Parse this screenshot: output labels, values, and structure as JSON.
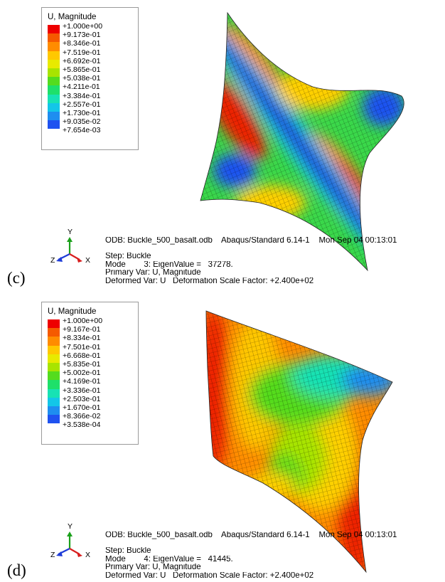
{
  "panels": [
    {
      "id": "c",
      "label": "(c)",
      "legend": {
        "title": "U, Magnitude",
        "values": [
          "+1.000e+00",
          "+9.173e-01",
          "+8.346e-01",
          "+7.519e-01",
          "+6.692e-01",
          "+5.865e-01",
          "+5.038e-01",
          "+4.211e-01",
          "+3.384e-01",
          "+2.557e-01",
          "+1.730e-01",
          "+9.035e-02",
          "+7.654e-03"
        ],
        "colors": [
          "#ee0000",
          "#f55a00",
          "#ff8c00",
          "#ffc800",
          "#e8ea00",
          "#a8e400",
          "#54dc1e",
          "#1ee06a",
          "#17e2b4",
          "#13c6e8",
          "#1e8ef0",
          "#1f52f0",
          "#2020d8"
        ]
      },
      "axes": {
        "y": "Y",
        "z": "Z",
        "x": "X"
      },
      "info": {
        "odb": "ODB: Buckle_500_basalt.odb    Abaqus/Standard 6.14-1    Mon Sep 04 00:13:01",
        "step": "Step: Buckle",
        "mode": "Mode        3: EigenValue =   37278.",
        "primary": "Primary Var: U, Magnitude",
        "deformed": "Deformed Var: U   Deformation Scale Factor: +2.400e+02"
      }
    },
    {
      "id": "d",
      "label": "(d)",
      "legend": {
        "title": "U, Magnitude",
        "values": [
          "+1.000e+00",
          "+9.167e-01",
          "+8.334e-01",
          "+7.501e-01",
          "+6.668e-01",
          "+5.835e-01",
          "+5.002e-01",
          "+4.169e-01",
          "+3.336e-01",
          "+2.503e-01",
          "+1.670e-01",
          "+8.366e-02",
          "+3.538e-04"
        ],
        "colors": [
          "#ee0000",
          "#f55a00",
          "#ff8c00",
          "#ffc800",
          "#e8ea00",
          "#a8e400",
          "#54dc1e",
          "#1ee06a",
          "#17e2b4",
          "#13c6e8",
          "#1e8ef0",
          "#1f52f0",
          "#2020d8"
        ]
      },
      "axes": {
        "y": "Y",
        "z": "Z",
        "x": "X"
      },
      "info": {
        "odb": "ODB: Buckle_500_basalt.odb    Abaqus/Standard 6.14-1    Mon Sep 04 00:13:01",
        "step": "Step: Buckle",
        "mode": "Mode        4: EigenValue =   41445.",
        "primary": "Primary Var: U, Magnitude",
        "deformed": "Deformed Var: U   Deformation Scale Factor: +2.400e+02"
      }
    }
  ]
}
